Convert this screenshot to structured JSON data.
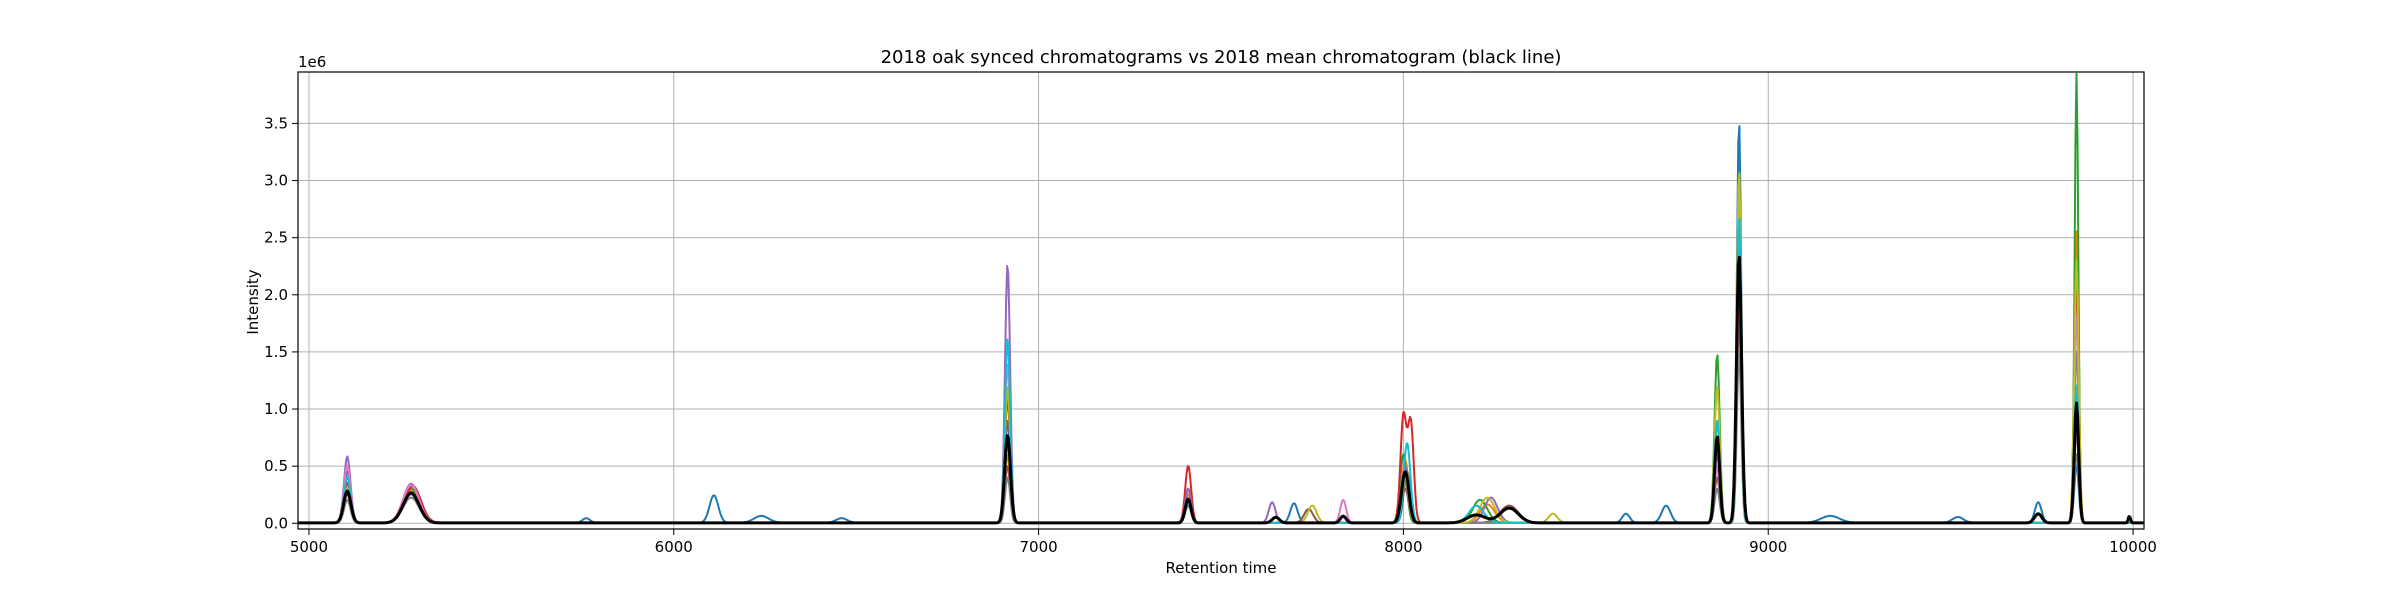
{
  "chart_data": {
    "type": "line",
    "title": "2018 oak synced chromatograms vs 2018 mean chromatogram (black line)",
    "xlabel": "Retention time",
    "ylabel": "Intensity",
    "y_offset_label": "1e6",
    "xlim": [
      4970,
      10030
    ],
    "ylim": [
      -0.05,
      3.95
    ],
    "x_ticks": [
      5000,
      6000,
      7000,
      8000,
      9000,
      10000
    ],
    "x_tick_labels": [
      "5000",
      "6000",
      "7000",
      "8000",
      "9000",
      "10000"
    ],
    "y_ticks": [
      0.0,
      0.5,
      1.0,
      1.5,
      2.0,
      2.5,
      3.0,
      3.5
    ],
    "y_tick_labels": [
      "0.0",
      "0.5",
      "1.0",
      "1.5",
      "2.0",
      "2.5",
      "3.0",
      "3.5"
    ],
    "grid": true,
    "mean_series": {
      "color": "#000000",
      "peaks": [
        {
          "x": 5105,
          "y": 0.28,
          "w": 10
        },
        {
          "x": 5280,
          "y": 0.26,
          "w": 22
        },
        {
          "x": 6915,
          "y": 0.77,
          "w": 8
        },
        {
          "x": 7410,
          "y": 0.21,
          "w": 8
        },
        {
          "x": 7650,
          "y": 0.05,
          "w": 10
        },
        {
          "x": 7835,
          "y": 0.06,
          "w": 8
        },
        {
          "x": 8005,
          "y": 0.45,
          "w": 10
        },
        {
          "x": 8200,
          "y": 0.07,
          "w": 25
        },
        {
          "x": 8290,
          "y": 0.13,
          "w": 25
        },
        {
          "x": 8860,
          "y": 0.76,
          "w": 7
        },
        {
          "x": 8920,
          "y": 2.35,
          "w": 7
        },
        {
          "x": 9740,
          "y": 0.08,
          "w": 10
        },
        {
          "x": 9845,
          "y": 1.05,
          "w": 6
        },
        {
          "x": 9990,
          "y": 0.06,
          "w": 3
        }
      ]
    },
    "sample_series": [
      {
        "color": "#1f77b4",
        "peaks": [
          {
            "x": 5105,
            "y": 0.45,
            "w": 9
          },
          {
            "x": 5280,
            "y": 0.25,
            "w": 22
          },
          {
            "x": 5760,
            "y": 0.04,
            "w": 10
          },
          {
            "x": 6110,
            "y": 0.24,
            "w": 12
          },
          {
            "x": 6240,
            "y": 0.06,
            "w": 20
          },
          {
            "x": 6460,
            "y": 0.04,
            "w": 15
          },
          {
            "x": 6915,
            "y": 0.9,
            "w": 7
          },
          {
            "x": 7410,
            "y": 0.2,
            "w": 8
          },
          {
            "x": 7700,
            "y": 0.17,
            "w": 10
          },
          {
            "x": 8010,
            "y": 0.45,
            "w": 9
          },
          {
            "x": 8290,
            "y": 0.13,
            "w": 25
          },
          {
            "x": 8610,
            "y": 0.08,
            "w": 10
          },
          {
            "x": 8720,
            "y": 0.15,
            "w": 12
          },
          {
            "x": 8860,
            "y": 0.5,
            "w": 7
          },
          {
            "x": 8920,
            "y": 3.52,
            "w": 6
          },
          {
            "x": 9170,
            "y": 0.06,
            "w": 25
          },
          {
            "x": 9520,
            "y": 0.05,
            "w": 15
          },
          {
            "x": 9740,
            "y": 0.18,
            "w": 9
          },
          {
            "x": 9845,
            "y": 0.5,
            "w": 6
          }
        ]
      },
      {
        "color": "#ff7f0e",
        "peaks": [
          {
            "x": 5105,
            "y": 0.2,
            "w": 9
          },
          {
            "x": 5280,
            "y": 0.28,
            "w": 22
          },
          {
            "x": 6915,
            "y": 0.6,
            "w": 7
          },
          {
            "x": 7410,
            "y": 0.25,
            "w": 8
          },
          {
            "x": 8005,
            "y": 0.55,
            "w": 9
          },
          {
            "x": 8230,
            "y": 0.16,
            "w": 20
          },
          {
            "x": 8860,
            "y": 0.9,
            "w": 7
          },
          {
            "x": 8920,
            "y": 2.5,
            "w": 6
          },
          {
            "x": 9845,
            "y": 2.55,
            "w": 6
          }
        ]
      },
      {
        "color": "#2ca02c",
        "peaks": [
          {
            "x": 5105,
            "y": 0.3,
            "w": 9
          },
          {
            "x": 5280,
            "y": 0.3,
            "w": 22
          },
          {
            "x": 6915,
            "y": 0.7,
            "w": 7
          },
          {
            "x": 7410,
            "y": 0.3,
            "w": 8
          },
          {
            "x": 8000,
            "y": 0.6,
            "w": 9
          },
          {
            "x": 8210,
            "y": 0.2,
            "w": 20
          },
          {
            "x": 8860,
            "y": 1.48,
            "w": 7
          },
          {
            "x": 8920,
            "y": 2.2,
            "w": 6
          },
          {
            "x": 9845,
            "y": 3.93,
            "w": 5
          }
        ]
      },
      {
        "color": "#d62728",
        "peaks": [
          {
            "x": 5105,
            "y": 0.35,
            "w": 9
          },
          {
            "x": 5285,
            "y": 0.32,
            "w": 22
          },
          {
            "x": 6915,
            "y": 1.1,
            "w": 7
          },
          {
            "x": 7410,
            "y": 0.5,
            "w": 8
          },
          {
            "x": 8000,
            "y": 0.93,
            "w": 8
          },
          {
            "x": 8020,
            "y": 0.88,
            "w": 8
          },
          {
            "x": 8860,
            "y": 0.7,
            "w": 7
          },
          {
            "x": 8920,
            "y": 2.0,
            "w": 6
          },
          {
            "x": 9845,
            "y": 2.1,
            "w": 6
          }
        ]
      },
      {
        "color": "#9467bd",
        "peaks": [
          {
            "x": 5105,
            "y": 0.58,
            "w": 9
          },
          {
            "x": 5280,
            "y": 0.34,
            "w": 22
          },
          {
            "x": 6915,
            "y": 2.27,
            "w": 7
          },
          {
            "x": 7410,
            "y": 0.3,
            "w": 8
          },
          {
            "x": 7640,
            "y": 0.18,
            "w": 9
          },
          {
            "x": 8005,
            "y": 0.5,
            "w": 9
          },
          {
            "x": 8240,
            "y": 0.22,
            "w": 18
          },
          {
            "x": 8860,
            "y": 0.6,
            "w": 7
          },
          {
            "x": 8920,
            "y": 2.6,
            "w": 6
          },
          {
            "x": 9845,
            "y": 1.5,
            "w": 6
          }
        ]
      },
      {
        "color": "#8c564b",
        "peaks": [
          {
            "x": 5105,
            "y": 0.25,
            "w": 9
          },
          {
            "x": 5280,
            "y": 0.27,
            "w": 22
          },
          {
            "x": 6915,
            "y": 0.5,
            "w": 7
          },
          {
            "x": 7410,
            "y": 0.15,
            "w": 8
          },
          {
            "x": 7740,
            "y": 0.12,
            "w": 12
          },
          {
            "x": 8005,
            "y": 0.3,
            "w": 9
          },
          {
            "x": 8290,
            "y": 0.15,
            "w": 25
          },
          {
            "x": 8860,
            "y": 0.4,
            "w": 7
          },
          {
            "x": 8920,
            "y": 1.8,
            "w": 6
          },
          {
            "x": 9845,
            "y": 0.8,
            "w": 6
          }
        ]
      },
      {
        "color": "#e377c2",
        "peaks": [
          {
            "x": 5105,
            "y": 0.5,
            "w": 9
          },
          {
            "x": 5280,
            "y": 0.33,
            "w": 22
          },
          {
            "x": 6915,
            "y": 1.4,
            "w": 7
          },
          {
            "x": 7410,
            "y": 0.2,
            "w": 8
          },
          {
            "x": 7835,
            "y": 0.2,
            "w": 8
          },
          {
            "x": 8005,
            "y": 0.4,
            "w": 9
          },
          {
            "x": 8860,
            "y": 0.5,
            "w": 7
          },
          {
            "x": 8920,
            "y": 2.9,
            "w": 6
          },
          {
            "x": 9845,
            "y": 1.8,
            "w": 6
          }
        ]
      },
      {
        "color": "#7f7f7f",
        "peaks": [
          {
            "x": 5105,
            "y": 0.2,
            "w": 9
          },
          {
            "x": 5280,
            "y": 0.22,
            "w": 22
          },
          {
            "x": 6915,
            "y": 0.4,
            "w": 7
          },
          {
            "x": 7410,
            "y": 0.15,
            "w": 8
          },
          {
            "x": 8005,
            "y": 0.35,
            "w": 9
          },
          {
            "x": 8860,
            "y": 0.3,
            "w": 7
          },
          {
            "x": 8920,
            "y": 1.5,
            "w": 6
          },
          {
            "x": 9845,
            "y": 0.6,
            "w": 6
          }
        ]
      },
      {
        "color": "#bcbd22",
        "peaks": [
          {
            "x": 5105,
            "y": 0.3,
            "w": 9
          },
          {
            "x": 5280,
            "y": 0.26,
            "w": 22
          },
          {
            "x": 6915,
            "y": 1.2,
            "w": 7
          },
          {
            "x": 7410,
            "y": 0.2,
            "w": 8
          },
          {
            "x": 7750,
            "y": 0.15,
            "w": 12
          },
          {
            "x": 8005,
            "y": 0.4,
            "w": 9
          },
          {
            "x": 8230,
            "y": 0.22,
            "w": 20
          },
          {
            "x": 8410,
            "y": 0.08,
            "w": 12
          },
          {
            "x": 8860,
            "y": 1.2,
            "w": 7
          },
          {
            "x": 8920,
            "y": 3.1,
            "w": 6
          },
          {
            "x": 9845,
            "y": 2.3,
            "w": 6
          }
        ]
      },
      {
        "color": "#17becf",
        "peaks": [
          {
            "x": 5105,
            "y": 0.4,
            "w": 9
          },
          {
            "x": 5280,
            "y": 0.25,
            "w": 22
          },
          {
            "x": 6915,
            "y": 1.62,
            "w": 7
          },
          {
            "x": 7410,
            "y": 0.18,
            "w": 8
          },
          {
            "x": 8010,
            "y": 0.7,
            "w": 9
          },
          {
            "x": 8200,
            "y": 0.15,
            "w": 20
          },
          {
            "x": 8860,
            "y": 0.9,
            "w": 7
          },
          {
            "x": 8920,
            "y": 2.7,
            "w": 6
          },
          {
            "x": 9845,
            "y": 1.2,
            "w": 6
          }
        ]
      }
    ]
  }
}
